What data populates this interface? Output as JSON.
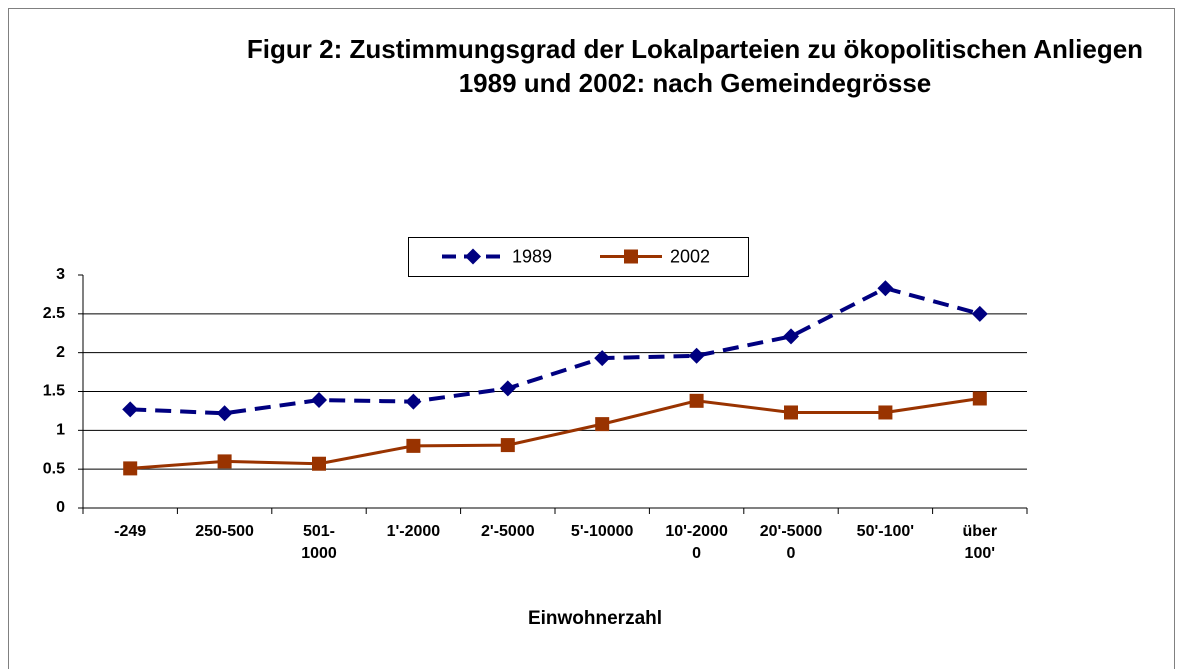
{
  "chart_data": {
    "type": "line",
    "title": "Figur 2: Zustimmungsgrad der Lokalparteien zu ökopolitischen Anliegen 1989 und 2002: nach Gemeindegrösse",
    "x_label": "Einwohnerzahl",
    "categories": [
      "-249",
      "250-500",
      "501-1000",
      "1'-2000",
      "2'-5000",
      "5'-10000",
      "10'-20000",
      "20'-50000",
      "50'-100'",
      "über 100'"
    ],
    "series": [
      {
        "name": "1989",
        "color": "#000080",
        "dashed": true,
        "marker": "diamond",
        "values": [
          1.27,
          1.22,
          1.39,
          1.37,
          1.54,
          1.93,
          1.96,
          2.21,
          2.83,
          2.5
        ]
      },
      {
        "name": "2002",
        "color": "#993300",
        "dashed": false,
        "marker": "square",
        "values": [
          0.51,
          0.6,
          0.57,
          0.8,
          0.81,
          1.08,
          1.38,
          1.23,
          1.23,
          1.41
        ]
      }
    ],
    "ylim": [
      0,
      3
    ],
    "yticks": [
      0,
      0.5,
      1,
      1.5,
      2,
      2.5,
      3
    ],
    "grid": true,
    "legend": "top"
  }
}
